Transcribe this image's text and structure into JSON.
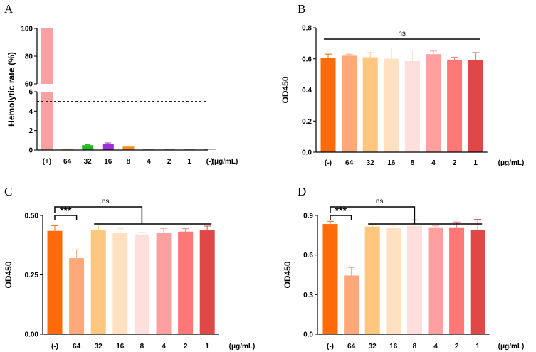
{
  "chart_data": [
    {
      "panel": "A",
      "type": "bar",
      "ylabel": "Hemolytic rate (%)",
      "unit_label": "(μg/mL)",
      "categories": [
        "(+)",
        "64",
        "32",
        "16",
        "8",
        "4",
        "2",
        "1",
        "(-)"
      ],
      "values": [
        100,
        0.1,
        0.5,
        0.65,
        0.35,
        0.05,
        0.05,
        0.05,
        0.02
      ],
      "errors": [
        0,
        0,
        0.05,
        0.08,
        0.05,
        0,
        0,
        0,
        0
      ],
      "colors": [
        "#f7a1a3",
        "#ffa070",
        "#22bb22",
        "#9b30d9",
        "#f09020",
        "#aaaaaa",
        "#aaaaaa",
        "#aaaaaa",
        "#aaaaaa"
      ],
      "y_segments": [
        {
          "range": [
            0,
            6
          ],
          "ticks": [
            0,
            2,
            4,
            6
          ]
        },
        {
          "range": [
            60,
            100
          ],
          "ticks": [
            60,
            80,
            100
          ]
        }
      ],
      "threshold": 5
    },
    {
      "panel": "B",
      "type": "bar",
      "ylabel": "OD450",
      "unit_label": "(μg/mL)",
      "categories": [
        "(-)",
        "64",
        "32",
        "16",
        "8",
        "4",
        "2",
        "1"
      ],
      "values": [
        0.605,
        0.62,
        0.61,
        0.6,
        0.585,
        0.63,
        0.595,
        0.59
      ],
      "errors": [
        0.025,
        0.01,
        0.03,
        0.07,
        0.07,
        0.02,
        0.015,
        0.05
      ],
      "colors": [
        "#ff6a0a",
        "#ffa87a",
        "#ffc680",
        "#ffe0c0",
        "#ffdede",
        "#ffa0a0",
        "#ff7878",
        "#e04848"
      ],
      "ylim": [
        0,
        0.8
      ],
      "yticks": [
        "0.0",
        "0.2",
        "0.4",
        "0.6",
        "0.8"
      ],
      "ns_label": "ns"
    },
    {
      "panel": "C",
      "type": "bar",
      "ylabel": "OD450",
      "unit_label": "(μg/mL)",
      "categories": [
        "(-)",
        "64",
        "32",
        "16",
        "8",
        "4",
        "2",
        "1"
      ],
      "values": [
        0.435,
        0.32,
        0.44,
        0.425,
        0.42,
        0.425,
        0.432,
        0.437
      ],
      "errors": [
        0.022,
        0.035,
        0.025,
        0.02,
        0.01,
        0.02,
        0.012,
        0.018
      ],
      "colors": [
        "#ff6a0a",
        "#ffa87a",
        "#ffc680",
        "#ffe0c0",
        "#ffdede",
        "#ffa0a0",
        "#ff7878",
        "#e04848"
      ],
      "ylim": [
        0,
        0.5
      ],
      "yticks": [
        "0.00",
        "0.25",
        "0.50"
      ],
      "ns_label": "ns",
      "sig_label": "***"
    },
    {
      "panel": "D",
      "type": "bar",
      "ylabel": "OD450",
      "unit_label": "(μg/mL)",
      "categories": [
        "(-)",
        "64",
        "32",
        "16",
        "8",
        "4",
        "2",
        "1"
      ],
      "values": [
        0.835,
        0.445,
        0.815,
        0.805,
        0.82,
        0.81,
        0.81,
        0.79
      ],
      "errors": [
        0.02,
        0.06,
        0.015,
        0.02,
        0.05,
        0.01,
        0.04,
        0.08
      ],
      "colors": [
        "#ff6a0a",
        "#ffa87a",
        "#ffc680",
        "#ffe0c0",
        "#ffdede",
        "#ffa0a0",
        "#ff7878",
        "#e04848"
      ],
      "ylim": [
        0,
        0.9
      ],
      "yticks": [
        "0.0",
        "0.3",
        "0.6",
        "0.9"
      ],
      "ns_label": "ns",
      "sig_label": "***"
    }
  ]
}
